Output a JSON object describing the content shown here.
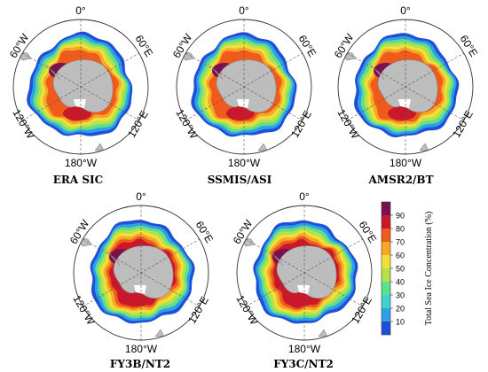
{
  "figure": {
    "panels": [
      {
        "id": "era",
        "caption": "ERA SIC"
      },
      {
        "id": "ssmis",
        "caption": "SSMIS/ASI"
      },
      {
        "id": "amsr2",
        "caption": "AMSR2/BT"
      },
      {
        "id": "fy3b",
        "caption": "FY3B/NT2"
      },
      {
        "id": "fy3c",
        "caption": "FY3C/NT2"
      }
    ],
    "graticule_labels": {
      "top": "0°",
      "upper_left": "60°W",
      "upper_right": "60°E",
      "lower_left": "120°W",
      "lower_right": "120°E",
      "bottom": "180°W"
    },
    "colorbar": {
      "title": "Total Sea Ice Concentration (%)",
      "ticks": [
        "10",
        "20",
        "30",
        "40",
        "50",
        "60",
        "70",
        "80",
        "90"
      ],
      "colors": [
        "#1f4fd6",
        "#2fa0e8",
        "#40d0d0",
        "#5ee08a",
        "#b6e14a",
        "#f0e03a",
        "#f6a726",
        "#ef5a1d",
        "#c8182a",
        "#7a1050"
      ]
    },
    "colors": {
      "land": "#bdbdbd",
      "ocean": "#ffffff",
      "grid": "#555555"
    }
  }
}
